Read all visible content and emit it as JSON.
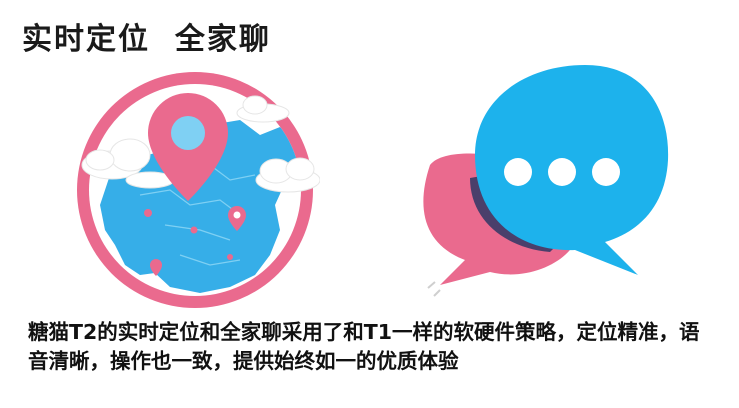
{
  "header": {
    "title": "实时定位  全家聊"
  },
  "illustrations": {
    "left": {
      "icon": "map-pin-globe",
      "colors": {
        "ring": "#ea6a8e",
        "ocean": "#ffffff",
        "land": "#36aee8",
        "pin": "#ea6a8e",
        "cloud": "#ffffff"
      }
    },
    "right": {
      "icon": "chat-bubbles",
      "colors": {
        "front": "#1db2ec",
        "back": "#ea6a8e",
        "shadow": "#4a3f6b",
        "dots": "#ffffff"
      }
    }
  },
  "description": {
    "text": "糖猫T2的实时定位和全家聊采用了和T1一样的软硬件策略，定位精准，语音清晰，操作也一致，提供始终如一的优质体验"
  }
}
